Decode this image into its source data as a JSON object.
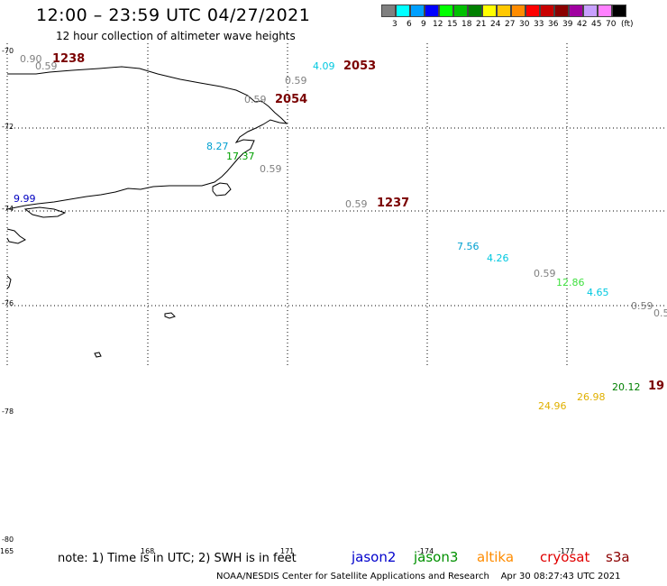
{
  "header": {
    "title": "12:00 – 23:59 UTC 04/27/2021",
    "subtitle": "12 hour collection of altimeter wave heights"
  },
  "legend": {
    "unit": "(ft)",
    "colors": [
      "#808080",
      "#00ffff",
      "#00a0ff",
      "#0000ff",
      "#00ff00",
      "#00c000",
      "#008000",
      "#ffff00",
      "#ffc800",
      "#ff8c00",
      "#ff0000",
      "#c80000",
      "#8b0000",
      "#a000a0",
      "#c8a0ff",
      "#ff80ff",
      "#000000"
    ],
    "labels": [
      "3",
      "6",
      "9",
      "12",
      "15",
      "18",
      "21",
      "24",
      "27",
      "30",
      "33",
      "36",
      "39",
      "42",
      "45",
      "70"
    ]
  },
  "axes": {
    "lat_labels": [
      "-70",
      "-72",
      "-74",
      "-76",
      "-78",
      "-80"
    ],
    "lon_labels": [
      "165",
      "168",
      "171",
      "-174",
      "-177"
    ]
  },
  "tracks": [
    "1238",
    "2053",
    "2054",
    "1237",
    "19"
  ],
  "observations": [
    {
      "value": "0.90",
      "color": "#808080"
    },
    {
      "value": "0.59",
      "color": "#808080"
    },
    {
      "value": "4.09",
      "color": "#00c8e0"
    },
    {
      "value": "0.59",
      "color": "#808080"
    },
    {
      "value": "0.59",
      "color": "#808080"
    },
    {
      "value": "8.27",
      "color": "#00a0d0"
    },
    {
      "value": "17.37",
      "color": "#00a000"
    },
    {
      "value": "0.59",
      "color": "#808080"
    },
    {
      "value": "9.99",
      "color": "#0000c0"
    },
    {
      "value": "0.59",
      "color": "#808080"
    },
    {
      "value": "7.56",
      "color": "#00a0d0"
    },
    {
      "value": "4.26",
      "color": "#00c8e0"
    },
    {
      "value": "0.59",
      "color": "#808080"
    },
    {
      "value": "12.86",
      "color": "#40e040"
    },
    {
      "value": "4.65",
      "color": "#00c8e0"
    },
    {
      "value": "0.59",
      "color": "#808080"
    },
    {
      "value": "0.5",
      "color": "#808080"
    },
    {
      "value": "20.12",
      "color": "#008000"
    },
    {
      "value": "26.98",
      "color": "#e0b000"
    },
    {
      "value": "24.96",
      "color": "#e0b000"
    }
  ],
  "footer": {
    "note": "note: 1) Time is in UTC; 2) SWH is in feet",
    "satellites": [
      {
        "name": "jason2",
        "color": "#0000cc"
      },
      {
        "name": "jason3",
        "color": "#009000"
      },
      {
        "name": "altika",
        "color": "#ff8c00"
      },
      {
        "name": "cryosat",
        "color": "#e00000"
      },
      {
        "name": "s3a",
        "color": "#8b0000"
      }
    ],
    "credit": "NOAA/NESDIS Center for Satellite Applications and Research",
    "timestamp": "Apr 30 08:27:43 UTC 2021"
  }
}
